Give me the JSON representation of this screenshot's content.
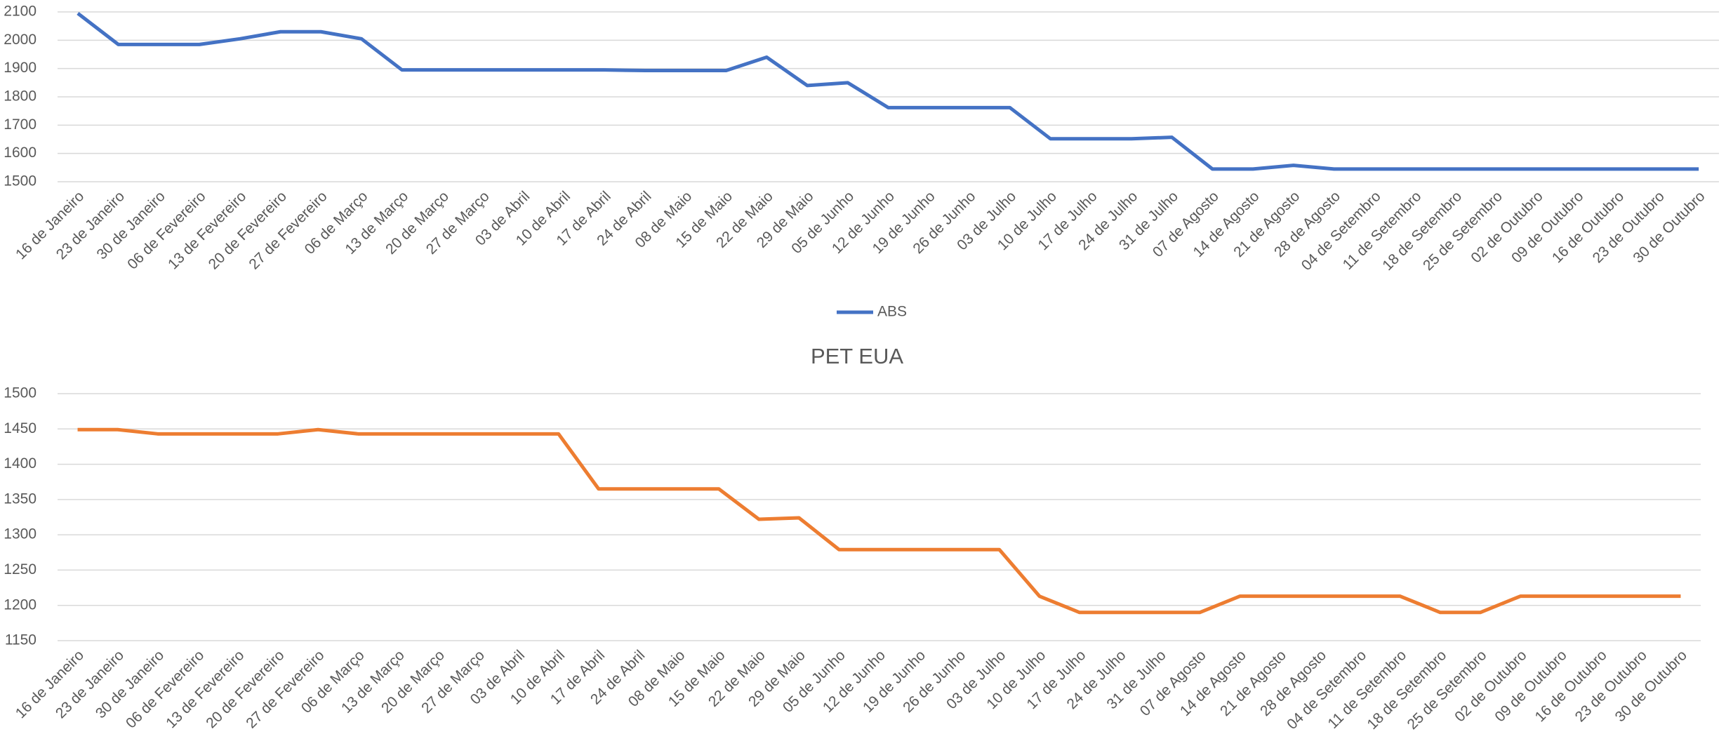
{
  "chart_data": [
    {
      "type": "line",
      "categories": [
        "16 de Janeiro",
        "23 de Janeiro",
        "30 de Janeiro",
        "06 de Fevereiro",
        "13 de Fevereiro",
        "20 de Fevereiro",
        "27 de Fevereiro",
        "06 de Março",
        "13 de Março",
        "20 de Março",
        "27 de Março",
        "03 de Abril",
        "10 de Abril",
        "17 de Abril",
        "24 de Abril",
        "08 de Maio",
        "15 de Maio",
        "22 de Maio",
        "29 de Maio",
        "05 de Junho",
        "12 de Junho",
        "19 de Junho",
        "26 de Junho",
        "03 de Julho",
        "10 de Julho",
        "17 de Julho",
        "24 de Julho",
        "31 de Julho",
        "07 de Agosto",
        "14 de Agosto",
        "21 de Agosto",
        "28 de Agosto",
        "04 de Setembro",
        "11 de Setembro",
        "18 de Setembro",
        "25 de Setembro",
        "02 de Outubro",
        "09 de Outubro",
        "16 de Outubro",
        "23 de Outubro",
        "30 de Outubro"
      ],
      "series": [
        {
          "name": "ABS",
          "color": "#4472c4",
          "values": [
            2095,
            1985,
            1985,
            1985,
            2005,
            2030,
            2030,
            2005,
            1895,
            1895,
            1895,
            1895,
            1895,
            1895,
            1893,
            1893,
            1893,
            1940,
            1840,
            1850,
            1762,
            1762,
            1762,
            1762,
            1652,
            1652,
            1652,
            1657,
            1545,
            1545,
            1558,
            1545,
            1545,
            1545,
            1545,
            1545,
            1545,
            1545,
            1545,
            1545,
            1545
          ]
        }
      ],
      "ylim": [
        1500,
        2100
      ],
      "yticks": [
        1500,
        1600,
        1700,
        1800,
        1900,
        2000,
        2100
      ],
      "grid": true,
      "legend": "bottom"
    },
    {
      "type": "line",
      "title": "PET EUA",
      "categories": [
        "16 de Janeiro",
        "23 de Janeiro",
        "30 de Janeiro",
        "06 de Fevereiro",
        "13 de Fevereiro",
        "20 de Fevereiro",
        "27 de Fevereiro",
        "06 de Março",
        "13 de Março",
        "20 de Março",
        "27 de Março",
        "03 de Abril",
        "10 de Abril",
        "17 de Abril",
        "24 de Abril",
        "08 de Maio",
        "15 de Maio",
        "22 de Maio",
        "29 de Maio",
        "05 de Junho",
        "12 de Junho",
        "19 de Junho",
        "26 de Junho",
        "03 de Julho",
        "10 de Julho",
        "17 de Julho",
        "24 de Julho",
        "31 de Julho",
        "07 de Agosto",
        "14 de Agosto",
        "21 de Agosto",
        "28 de Agosto",
        "04 de Setembro",
        "11 de Setembro",
        "18 de Setembro",
        "25 de Setembro",
        "02 de Outubro",
        "09 de Outubro",
        "16 de Outubro",
        "23 de Outubro",
        "30 de Outubro"
      ],
      "series": [
        {
          "color": "#ed7d31",
          "values": [
            1449,
            1449,
            1443,
            1443,
            1443,
            1443,
            1449,
            1443,
            1443,
            1443,
            1443,
            1443,
            1443,
            1365,
            1365,
            1365,
            1365,
            1322,
            1324,
            1279,
            1279,
            1279,
            1279,
            1279,
            1213,
            1190,
            1190,
            1190,
            1190,
            1213,
            1213,
            1213,
            1213,
            1213,
            1190,
            1190,
            1213,
            1213,
            1213,
            1213,
            1213
          ]
        }
      ],
      "ylim": [
        1150,
        1500
      ],
      "yticks": [
        1150,
        1200,
        1250,
        1300,
        1350,
        1400,
        1450,
        1500
      ],
      "grid": true
    }
  ]
}
